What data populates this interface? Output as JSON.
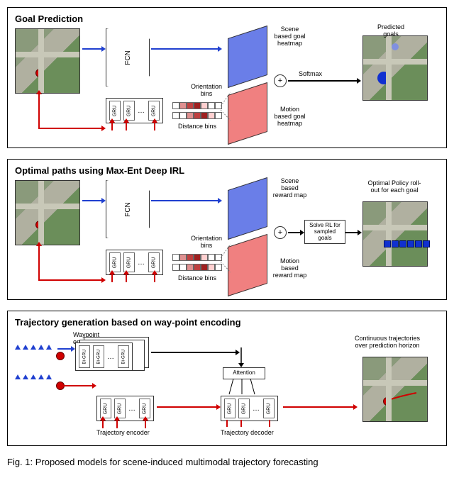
{
  "panel1": {
    "title": "Goal Prediction",
    "fcn_label": "FCN",
    "gru_label": "GRU",
    "orientation_label": "Orientation\nbins",
    "distance_label": "Distance bins",
    "scene_heatmap_label": "Scene\nbased goal\nheatmap",
    "motion_heatmap_label": "Motion\nbased goal\nheatmap",
    "softmax_label": "Softmax",
    "predicted_label": "Predicted\ngoals",
    "bin_colors_orient": [
      "#ffffff",
      "#e09090",
      "#c04040",
      "#a02020",
      "#ffd0d0",
      "#ffffff",
      "#ffffff"
    ],
    "bin_colors_dist": [
      "#ffffff",
      "#ffffff",
      "#e09090",
      "#c04040",
      "#a02020",
      "#ffd0d0",
      "#ffffff"
    ],
    "blue_map_color": "#6a7ee8",
    "red_map_color": "#f08080"
  },
  "panel2": {
    "title": "Optimal paths using Max-Ent Deep IRL",
    "fcn_label": "FCN",
    "gru_label": "GRU",
    "orientation_label": "Orientation\nbins",
    "distance_label": "Distance bins",
    "scene_reward_label": "Scene\nbased\nreward map",
    "motion_reward_label": "Motion\nbased\nreward map",
    "solve_label": "Solve RL for\nsampled\ngoals",
    "rollout_label": "Optimal Policy roll-\nout for each goal"
  },
  "panel3": {
    "title": "Trajectory generation based on way-point encoding",
    "waypoint_enc_label": "Waypoint\nencoder",
    "bigru_label": "Bi-GRU",
    "gru_label": "GRU",
    "attention_label": "Attention",
    "traj_enc_label": "Trajectory encoder",
    "traj_dec_label": "Trajectory decoder",
    "output_label": "Continuous trajectories\nover prediction horizon"
  },
  "caption": "Fig. 1: Proposed models for scene-induced multimodal trajectory forecasting"
}
